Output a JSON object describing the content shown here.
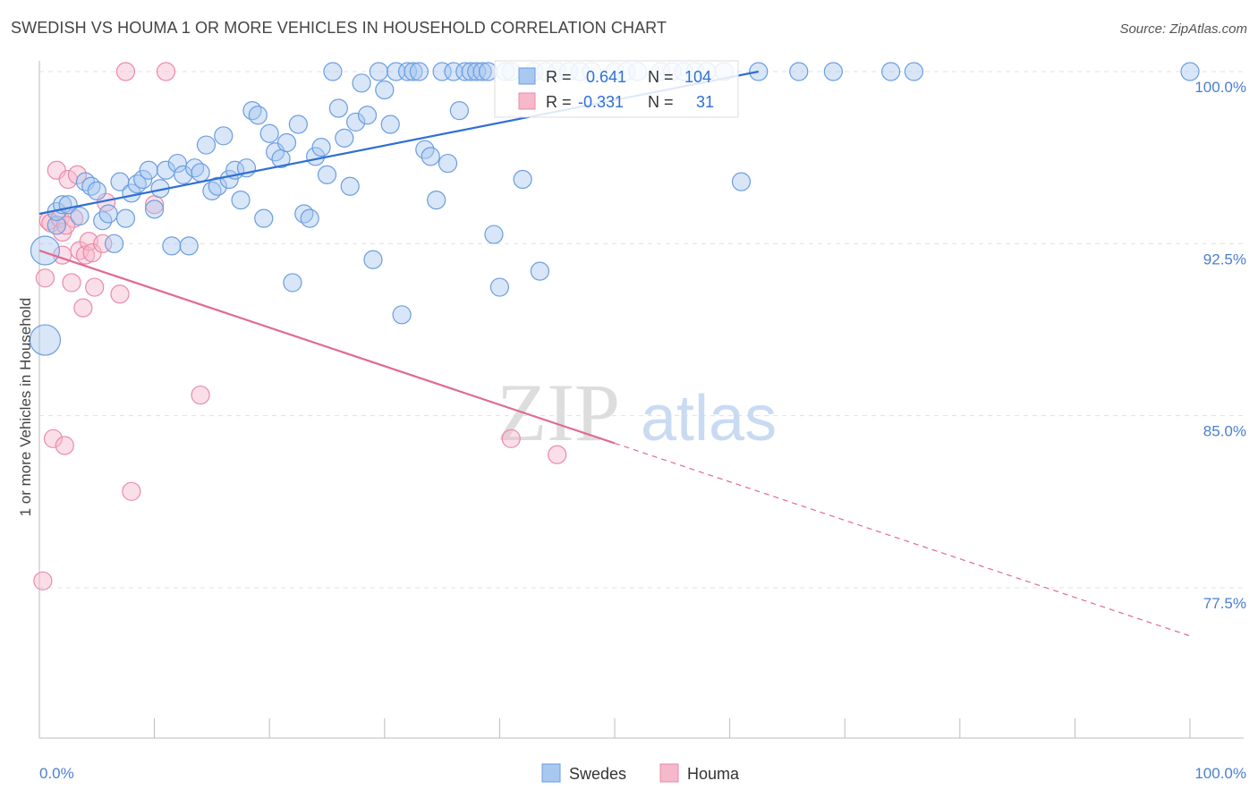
{
  "header": {
    "title": "SWEDISH VS HOUMA 1 OR MORE VEHICLES IN HOUSEHOLD CORRELATION CHART",
    "source": "Source: ZipAtlas.com"
  },
  "watermark": {
    "zip": "ZIP",
    "atlas": "atlas"
  },
  "legend_box": {
    "rows": [
      {
        "r_label": "R =",
        "r_value": "0.641",
        "n_label": "N =",
        "n_value": "104"
      },
      {
        "r_label": "R =",
        "r_value": "-0.331",
        "n_label": "N =",
        "n_value": "31"
      }
    ]
  },
  "colors": {
    "swedes_fill": "#a9c8f0",
    "swedes_stroke": "#6a9de0",
    "swedes_line": "#2f6fd4",
    "houma_fill": "#f6b8cb",
    "houma_stroke": "#ea8aa8",
    "houma_line": "#e06a93",
    "grid": "#e0e0e0",
    "axis_text": "#4a7fd0"
  },
  "chart_data": {
    "type": "scatter",
    "title": "SWEDISH VS HOUMA 1 OR MORE VEHICLES IN HOUSEHOLD CORRELATION CHART",
    "xlabel": "",
    "ylabel": "1 or more Vehicles in Household",
    "x_tick_labels": [
      "0.0%",
      "100.0%"
    ],
    "y_tick_labels": [
      "100.0%",
      "92.5%",
      "85.0%",
      "77.5%"
    ],
    "y_ticks": [
      100.0,
      92.5,
      85.0,
      77.5
    ],
    "xlim": [
      0,
      100
    ],
    "ylim": [
      70.0,
      101.0
    ],
    "grid": true,
    "legend_placement": "top-center",
    "series": [
      {
        "name": "Swedes",
        "r": 0.641,
        "n": 104,
        "trend": {
          "x": [
            0.0,
            62.5
          ],
          "y": [
            93.8,
            100.0
          ]
        },
        "points": [
          {
            "x": 0.5,
            "y": 92.2,
            "s": 16
          },
          {
            "x": 0.5,
            "y": 88.3,
            "s": 17
          },
          {
            "x": 1.5,
            "y": 93.3,
            "s": 10
          },
          {
            "x": 1.5,
            "y": 93.9,
            "s": 10
          },
          {
            "x": 2.0,
            "y": 94.2,
            "s": 10
          },
          {
            "x": 2.5,
            "y": 94.2,
            "s": 10
          },
          {
            "x": 3.5,
            "y": 93.7,
            "s": 10
          },
          {
            "x": 4.0,
            "y": 95.2,
            "s": 10
          },
          {
            "x": 4.5,
            "y": 95.0,
            "s": 10
          },
          {
            "x": 5.0,
            "y": 94.8,
            "s": 10
          },
          {
            "x": 5.5,
            "y": 93.5,
            "s": 10
          },
          {
            "x": 6.0,
            "y": 93.8,
            "s": 10
          },
          {
            "x": 6.5,
            "y": 92.5,
            "s": 10
          },
          {
            "x": 7.0,
            "y": 95.2,
            "s": 10
          },
          {
            "x": 7.5,
            "y": 93.6,
            "s": 10
          },
          {
            "x": 8.0,
            "y": 94.7,
            "s": 10
          },
          {
            "x": 8.5,
            "y": 95.1,
            "s": 10
          },
          {
            "x": 9.0,
            "y": 95.3,
            "s": 10
          },
          {
            "x": 9.5,
            "y": 95.7,
            "s": 10
          },
          {
            "x": 10.0,
            "y": 94.0,
            "s": 10
          },
          {
            "x": 10.5,
            "y": 94.9,
            "s": 10
          },
          {
            "x": 11.0,
            "y": 95.7,
            "s": 10
          },
          {
            "x": 11.5,
            "y": 92.4,
            "s": 10
          },
          {
            "x": 12.0,
            "y": 96.0,
            "s": 10
          },
          {
            "x": 12.5,
            "y": 95.5,
            "s": 10
          },
          {
            "x": 13.0,
            "y": 92.4,
            "s": 10
          },
          {
            "x": 13.5,
            "y": 95.8,
            "s": 10
          },
          {
            "x": 14.0,
            "y": 95.6,
            "s": 10
          },
          {
            "x": 14.5,
            "y": 96.8,
            "s": 10
          },
          {
            "x": 15.0,
            "y": 94.8,
            "s": 10
          },
          {
            "x": 15.5,
            "y": 95.0,
            "s": 10
          },
          {
            "x": 16.0,
            "y": 97.2,
            "s": 10
          },
          {
            "x": 16.5,
            "y": 95.3,
            "s": 10
          },
          {
            "x": 17.0,
            "y": 95.7,
            "s": 10
          },
          {
            "x": 17.5,
            "y": 94.4,
            "s": 10
          },
          {
            "x": 18.0,
            "y": 95.8,
            "s": 10
          },
          {
            "x": 18.5,
            "y": 98.3,
            "s": 10
          },
          {
            "x": 19.0,
            "y": 98.1,
            "s": 10
          },
          {
            "x": 19.5,
            "y": 93.6,
            "s": 10
          },
          {
            "x": 20.0,
            "y": 97.3,
            "s": 10
          },
          {
            "x": 20.5,
            "y": 96.5,
            "s": 10
          },
          {
            "x": 21.0,
            "y": 96.2,
            "s": 10
          },
          {
            "x": 21.5,
            "y": 96.9,
            "s": 10
          },
          {
            "x": 22.0,
            "y": 90.8,
            "s": 10
          },
          {
            "x": 22.5,
            "y": 97.7,
            "s": 10
          },
          {
            "x": 23.0,
            "y": 93.8,
            "s": 10
          },
          {
            "x": 23.5,
            "y": 93.6,
            "s": 10
          },
          {
            "x": 24.0,
            "y": 96.3,
            "s": 10
          },
          {
            "x": 24.5,
            "y": 96.7,
            "s": 10
          },
          {
            "x": 25.0,
            "y": 95.5,
            "s": 10
          },
          {
            "x": 25.5,
            "y": 100.0,
            "s": 10
          },
          {
            "x": 26.0,
            "y": 98.4,
            "s": 10
          },
          {
            "x": 26.5,
            "y": 97.1,
            "s": 10
          },
          {
            "x": 27.0,
            "y": 95.0,
            "s": 10
          },
          {
            "x": 27.5,
            "y": 97.8,
            "s": 10
          },
          {
            "x": 28.0,
            "y": 99.5,
            "s": 10
          },
          {
            "x": 28.5,
            "y": 98.1,
            "s": 10
          },
          {
            "x": 29.0,
            "y": 91.8,
            "s": 10
          },
          {
            "x": 29.5,
            "y": 100.0,
            "s": 10
          },
          {
            "x": 30.0,
            "y": 99.2,
            "s": 10
          },
          {
            "x": 30.5,
            "y": 97.7,
            "s": 10
          },
          {
            "x": 31.0,
            "y": 100.0,
            "s": 10
          },
          {
            "x": 31.5,
            "y": 89.4,
            "s": 10
          },
          {
            "x": 32.0,
            "y": 100.0,
            "s": 10
          },
          {
            "x": 32.5,
            "y": 100.0,
            "s": 10
          },
          {
            "x": 33.0,
            "y": 100.0,
            "s": 10
          },
          {
            "x": 33.5,
            "y": 96.6,
            "s": 10
          },
          {
            "x": 34.0,
            "y": 96.3,
            "s": 10
          },
          {
            "x": 34.5,
            "y": 94.4,
            "s": 10
          },
          {
            "x": 35.0,
            "y": 100.0,
            "s": 10
          },
          {
            "x": 35.5,
            "y": 96.0,
            "s": 10
          },
          {
            "x": 36.0,
            "y": 100.0,
            "s": 10
          },
          {
            "x": 36.5,
            "y": 98.3,
            "s": 10
          },
          {
            "x": 37.0,
            "y": 100.0,
            "s": 10
          },
          {
            "x": 37.5,
            "y": 100.0,
            "s": 10
          },
          {
            "x": 38.0,
            "y": 100.0,
            "s": 10
          },
          {
            "x": 38.5,
            "y": 100.0,
            "s": 10
          },
          {
            "x": 39.0,
            "y": 100.0,
            "s": 10
          },
          {
            "x": 39.5,
            "y": 92.9,
            "s": 10
          },
          {
            "x": 40.0,
            "y": 90.6,
            "s": 10
          },
          {
            "x": 40.5,
            "y": 100.0,
            "s": 10
          },
          {
            "x": 41.0,
            "y": 100.0,
            "s": 10
          },
          {
            "x": 42.0,
            "y": 95.3,
            "s": 10
          },
          {
            "x": 43.0,
            "y": 100.0,
            "s": 10
          },
          {
            "x": 43.5,
            "y": 91.3,
            "s": 10
          },
          {
            "x": 44.0,
            "y": 100.0,
            "s": 10
          },
          {
            "x": 45.0,
            "y": 100.0,
            "s": 10
          },
          {
            "x": 46.0,
            "y": 100.0,
            "s": 10
          },
          {
            "x": 47.0,
            "y": 100.0,
            "s": 10
          },
          {
            "x": 48.0,
            "y": 100.0,
            "s": 10
          },
          {
            "x": 50.0,
            "y": 100.0,
            "s": 10
          },
          {
            "x": 51.0,
            "y": 100.0,
            "s": 10
          },
          {
            "x": 52.0,
            "y": 100.0,
            "s": 10
          },
          {
            "x": 54.0,
            "y": 100.0,
            "s": 10
          },
          {
            "x": 55.0,
            "y": 100.0,
            "s": 10
          },
          {
            "x": 56.0,
            "y": 100.0,
            "s": 10
          },
          {
            "x": 57.0,
            "y": 100.0,
            "s": 10
          },
          {
            "x": 58.0,
            "y": 100.0,
            "s": 10
          },
          {
            "x": 59.5,
            "y": 100.0,
            "s": 10
          },
          {
            "x": 61.0,
            "y": 95.2,
            "s": 10
          },
          {
            "x": 62.5,
            "y": 100.0,
            "s": 10
          },
          {
            "x": 66.0,
            "y": 100.0,
            "s": 10
          },
          {
            "x": 69.0,
            "y": 100.0,
            "s": 10
          },
          {
            "x": 74.0,
            "y": 100.0,
            "s": 10
          },
          {
            "x": 76.0,
            "y": 100.0,
            "s": 10
          },
          {
            "x": 100.0,
            "y": 100.0,
            "s": 10
          }
        ]
      },
      {
        "name": "Houma",
        "r": -0.331,
        "n": 31,
        "trend": {
          "x": [
            0.0,
            50.0,
            100.0
          ],
          "y": [
            92.2,
            83.8,
            75.4
          ],
          "solid_until_x": 50.0
        },
        "points": [
          {
            "x": 0.3,
            "y": 77.8,
            "s": 10
          },
          {
            "x": 0.5,
            "y": 91.0,
            "s": 10
          },
          {
            "x": 0.8,
            "y": 93.5,
            "s": 10
          },
          {
            "x": 1.0,
            "y": 93.4,
            "s": 10
          },
          {
            "x": 1.2,
            "y": 84.0,
            "s": 10
          },
          {
            "x": 1.5,
            "y": 95.7,
            "s": 10
          },
          {
            "x": 1.8,
            "y": 93.6,
            "s": 10
          },
          {
            "x": 2.0,
            "y": 93.0,
            "s": 10
          },
          {
            "x": 2.0,
            "y": 92.0,
            "s": 10
          },
          {
            "x": 2.2,
            "y": 83.7,
            "s": 10
          },
          {
            "x": 2.5,
            "y": 95.3,
            "s": 10
          },
          {
            "x": 2.8,
            "y": 90.8,
            "s": 10
          },
          {
            "x": 3.0,
            "y": 93.6,
            "s": 10
          },
          {
            "x": 3.3,
            "y": 95.5,
            "s": 10
          },
          {
            "x": 3.5,
            "y": 92.2,
            "s": 10
          },
          {
            "x": 3.8,
            "y": 89.7,
            "s": 10
          },
          {
            "x": 4.0,
            "y": 92.0,
            "s": 10
          },
          {
            "x": 4.3,
            "y": 92.6,
            "s": 10
          },
          {
            "x": 4.6,
            "y": 92.1,
            "s": 10
          },
          {
            "x": 4.8,
            "y": 90.6,
            "s": 10
          },
          {
            "x": 5.5,
            "y": 92.5,
            "s": 10
          },
          {
            "x": 5.8,
            "y": 94.3,
            "s": 10
          },
          {
            "x": 7.0,
            "y": 90.3,
            "s": 10
          },
          {
            "x": 7.5,
            "y": 100.0,
            "s": 10
          },
          {
            "x": 8.0,
            "y": 81.7,
            "s": 10
          },
          {
            "x": 10.0,
            "y": 94.2,
            "s": 10
          },
          {
            "x": 11.0,
            "y": 100.0,
            "s": 10
          },
          {
            "x": 14.0,
            "y": 85.9,
            "s": 10
          },
          {
            "x": 41.0,
            "y": 84.0,
            "s": 10
          },
          {
            "x": 45.0,
            "y": 83.3,
            "s": 10
          },
          {
            "x": 2.3,
            "y": 93.3,
            "s": 10
          }
        ]
      }
    ]
  }
}
